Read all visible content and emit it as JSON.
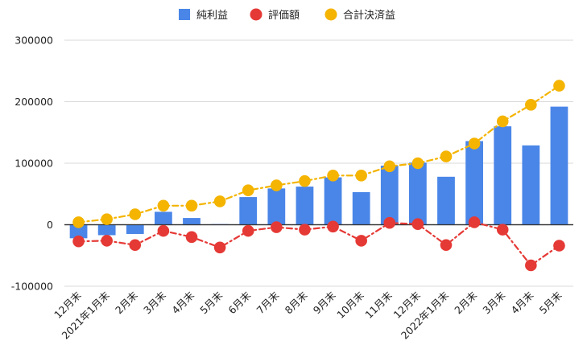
{
  "chart_data": {
    "type": "bar+line",
    "categories": [
      "12月末",
      "2021年1月末",
      "2月末",
      "3月末",
      "4月末",
      "5月末",
      "6月末",
      "7月末",
      "8月末",
      "9月末",
      "10月末",
      "11月末",
      "12月末",
      "2022年1月末",
      "2月末",
      "3月末",
      "4月末",
      "5月末"
    ],
    "series": [
      {
        "name": "純利益",
        "type": "bar",
        "color": "#4a86e8",
        "values": [
          -22000,
          -17000,
          -15000,
          21000,
          11000,
          1000,
          45000,
          59000,
          62000,
          77000,
          53000,
          96000,
          101000,
          78000,
          136000,
          160000,
          129000,
          192000
        ]
      },
      {
        "name": "評価額",
        "type": "line",
        "color": "#e53935",
        "values": [
          -27000,
          -26000,
          -33000,
          -10000,
          -20000,
          -37000,
          -10000,
          -4000,
          -8000,
          -3000,
          -26000,
          3000,
          1000,
          -33000,
          4000,
          -8000,
          -66000,
          -34000
        ]
      },
      {
        "name": "合計決済益",
        "type": "line",
        "color": "#f4b400",
        "values": [
          4000,
          9000,
          17000,
          31000,
          31000,
          38000,
          56000,
          64000,
          71000,
          80000,
          80000,
          95000,
          100000,
          111000,
          132000,
          168000,
          195000,
          226000
        ]
      }
    ],
    "yticks": [
      "300000",
      "200000",
      "100000",
      "0",
      "-100000"
    ],
    "ylim": [
      -100000,
      300000
    ],
    "legend_position": "top",
    "grid": true
  }
}
